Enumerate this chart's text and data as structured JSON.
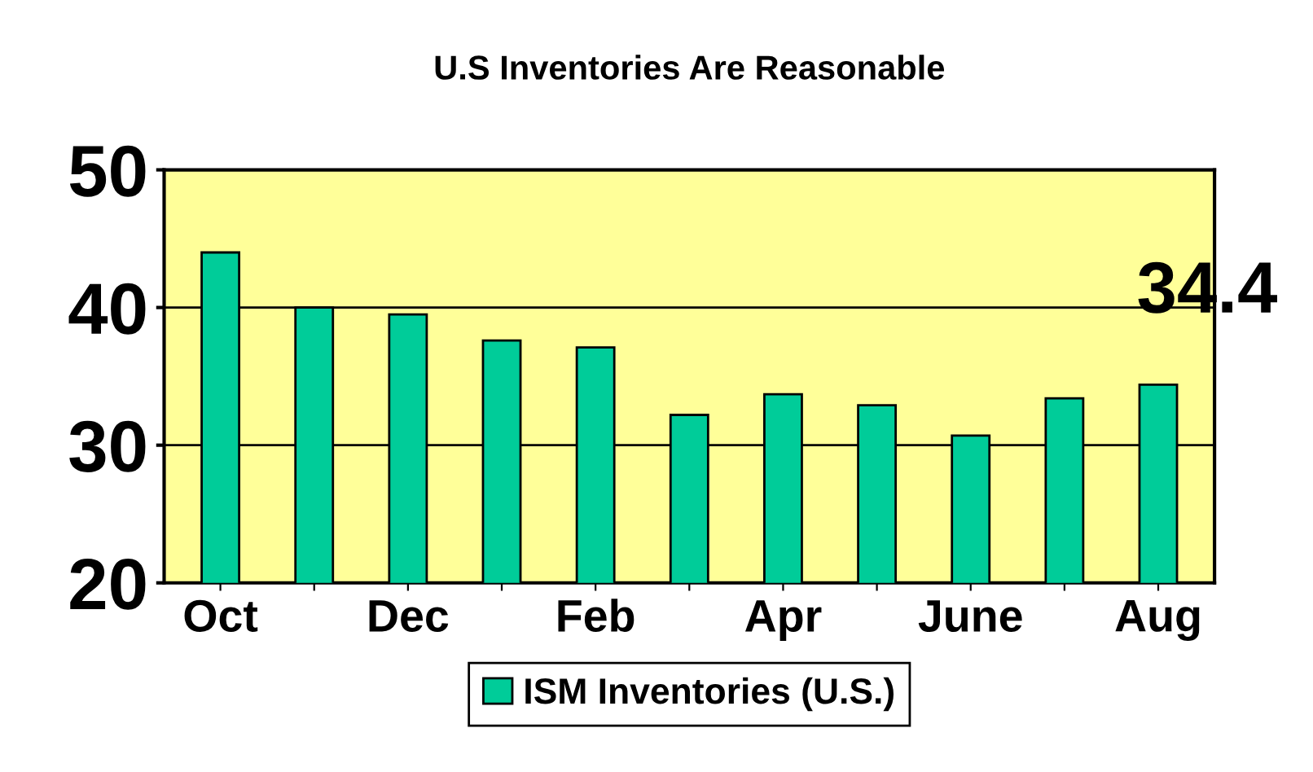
{
  "chart_data": {
    "type": "bar",
    "title": "U.S Inventories Are Reasonable",
    "categories": [
      "Oct",
      null,
      "Dec",
      null,
      "Feb",
      null,
      "Apr",
      null,
      "June",
      null,
      "Aug"
    ],
    "series": [
      {
        "name": "ISM Inventories (U.S.)",
        "color": "#00cc99",
        "values": [
          44.0,
          40.0,
          39.5,
          37.6,
          37.1,
          32.2,
          33.7,
          32.9,
          30.7,
          33.4,
          34.4
        ]
      }
    ],
    "ylim": [
      20,
      50
    ],
    "yticks": [
      20,
      30,
      40,
      50
    ],
    "grid": "y",
    "legend": "bottom",
    "annotations": [
      "34.4"
    ]
  }
}
